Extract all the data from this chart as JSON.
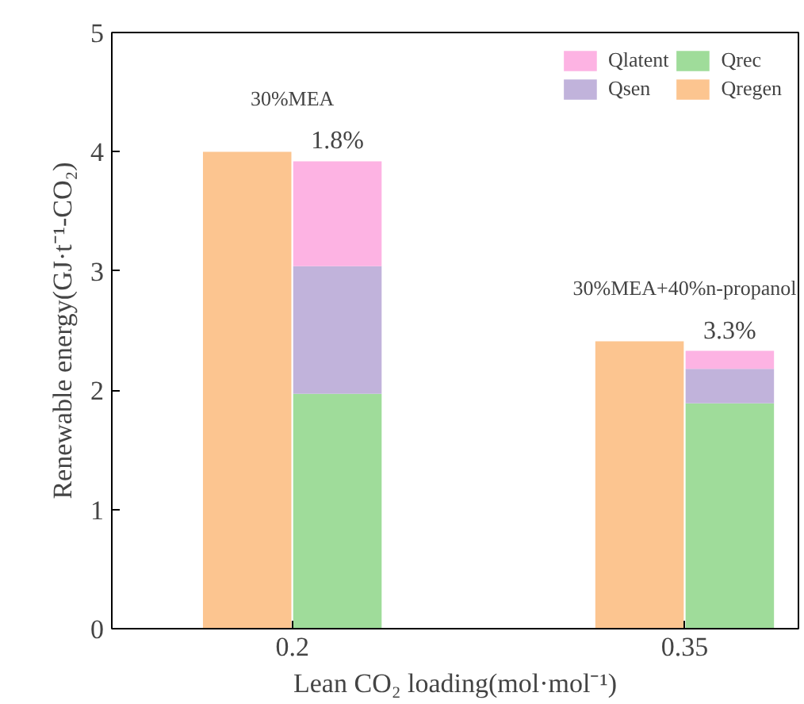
{
  "chart_data": {
    "type": "bar",
    "xlabel": "Lean CO₂ loading(mol·mol⁻¹)",
    "ylabel": "Renewable energy(GJ·t⁻¹-CO₂)",
    "categories": [
      "0.2",
      "0.35"
    ],
    "series": [
      {
        "name": "Qregen",
        "color": "#fcc590",
        "values": [
          4.0,
          2.41
        ]
      },
      {
        "name": "Qrec",
        "color": "#9fdc9a",
        "values": [
          1.97,
          1.89
        ],
        "base": [
          0,
          0
        ]
      },
      {
        "name": "Qsen",
        "color": "#c1b3db",
        "values": [
          1.07,
          0.29
        ],
        "base": [
          1.97,
          1.89
        ]
      },
      {
        "name": "Qlatent",
        "color": "#fdb3e3",
        "values": [
          0.88,
          0.15
        ],
        "base": [
          3.04,
          2.18
        ]
      }
    ],
    "ylim": [
      0,
      5
    ],
    "yticks": [
      0,
      1,
      2,
      3,
      4,
      5
    ],
    "grid": false,
    "legend": "top right",
    "annotations": [
      "30%MEA",
      "30%MEA+40%n-propanol",
      {
        "text": "1.8%",
        "x": "0.2",
        "y": 3.92
      },
      {
        "text": "3.3%",
        "x": "0.35",
        "y": 2.33
      }
    ]
  }
}
